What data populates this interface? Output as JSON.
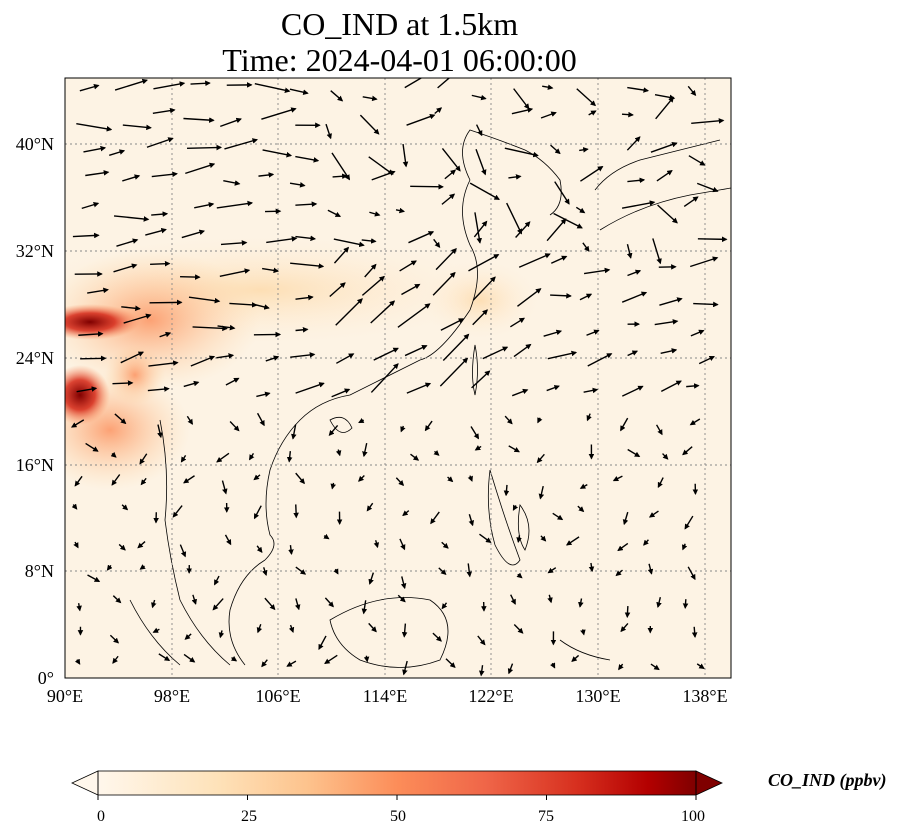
{
  "title": {
    "line1": "CO_IND at 1.5km",
    "line2": "Time: 2024-04-01 06:00:00"
  },
  "map": {
    "lon_range": [
      90,
      140
    ],
    "lat_range": [
      0,
      45
    ],
    "grid": "dotted",
    "lon_ticks": [
      "90°E",
      "98°E",
      "106°E",
      "114°E",
      "122°E",
      "130°E",
      "138°E"
    ],
    "lat_ticks": [
      "0°",
      "8°N",
      "16°N",
      "24°N",
      "32°N",
      "40°N"
    ]
  },
  "colorbar": {
    "label": "CO_IND (ppbv)",
    "colormap": "OrRd",
    "range": [
      0,
      100
    ],
    "ticks": [
      "0",
      "25",
      "50",
      "75",
      "100"
    ],
    "extend": "both"
  }
}
